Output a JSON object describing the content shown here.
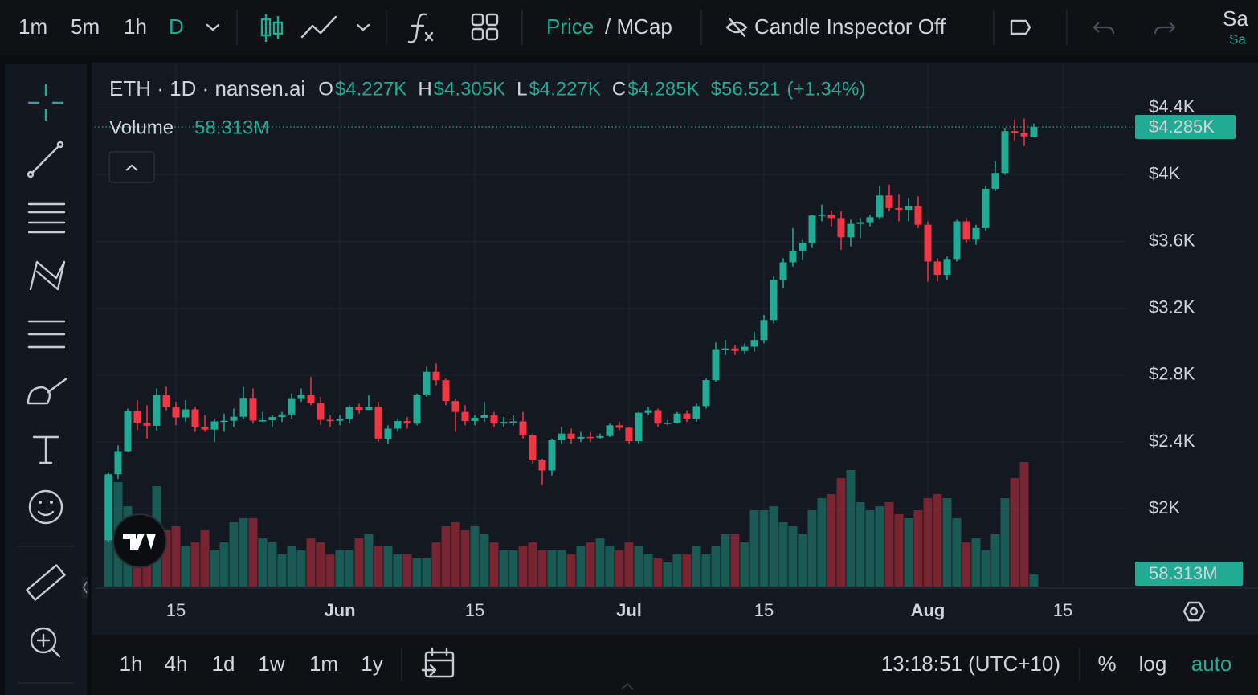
{
  "toolbar": {
    "intervals": [
      "1m",
      "5m",
      "1h",
      "D"
    ],
    "price": "Price",
    "mcap": "/ MCap",
    "candle_inspector": "Candle Inspector Off",
    "save": "Sa",
    "save_status": "Sa"
  },
  "chart_data": {
    "type": "candlestick",
    "title": "ETH · 1D · nansen.ai",
    "ohlc_legend": [
      {
        "key": "O",
        "label": "$4.227K"
      },
      {
        "key": "H",
        "label": "$4.305K"
      },
      {
        "key": "L",
        "label": "$4.227K"
      },
      {
        "key": "C",
        "label": "$4.285K"
      }
    ],
    "change_label": "$56.521",
    "change_percent_label": "(+1.34%)",
    "volume_title": "Volume",
    "volume_legend_label": "58.313M",
    "last_price_label": "$4.285K",
    "last_volume_label": "58.313M",
    "categories": [
      null,
      null,
      null,
      null,
      null,
      null,
      null,
      "15",
      null,
      null,
      null,
      null,
      null,
      null,
      null,
      null,
      null,
      null,
      null,
      null,
      null,
      null,
      null,
      null,
      "Jun",
      null,
      null,
      null,
      null,
      null,
      null,
      null,
      null,
      null,
      null,
      null,
      null,
      null,
      "15",
      null,
      null,
      null,
      null,
      null,
      null,
      null,
      null,
      null,
      null,
      null,
      null,
      null,
      null,
      null,
      "Jul",
      null,
      null,
      null,
      null,
      null,
      null,
      null,
      null,
      null,
      null,
      null,
      null,
      null,
      "15",
      null,
      null,
      null,
      null,
      null,
      null,
      null,
      null,
      null,
      null,
      null,
      null,
      null,
      null,
      null,
      null,
      "Aug",
      null,
      null,
      null,
      null,
      null,
      null,
      null,
      null,
      null,
      null,
      null,
      null,
      null,
      "15"
    ],
    "open": [
      1812,
      2207,
      2345,
      2583,
      2514,
      2497,
      2680,
      2609,
      2547,
      2595,
      2491,
      2474,
      2523,
      2527,
      2551,
      2664,
      2528,
      2530,
      2549,
      2565,
      2662,
      2682,
      2633,
      2532,
      2527,
      2540,
      2609,
      2592,
      2610,
      2420,
      2480,
      2525,
      2510,
      2680,
      2820,
      2770,
      2645,
      2580,
      2525,
      2545,
      2560,
      2510,
      2520,
      2523,
      2440,
      2290,
      2230,
      2410,
      2450,
      2420,
      2430,
      2425,
      2435,
      2500,
      2485,
      2405,
      2575,
      2590,
      2510,
      2515,
      2570,
      2540,
      2615,
      2770,
      2955,
      2960,
      2945,
      2970,
      3010,
      3130,
      3370,
      3475,
      3545,
      3590,
      3755,
      3760,
      3740,
      3625,
      3705,
      3715,
      3745,
      3875,
      3800,
      3790,
      3810,
      3700,
      3480,
      3400,
      3495,
      3720,
      3610,
      3680,
      3915,
      4010,
      4260,
      4250,
      4227,
      null,
      null,
      null
    ],
    "high": [
      2215,
      2380,
      2600,
      2650,
      2620,
      2720,
      2730,
      2640,
      2650,
      2610,
      2560,
      2540,
      2570,
      2600,
      2730,
      2720,
      2580,
      2560,
      2580,
      2690,
      2720,
      2790,
      2670,
      2560,
      2560,
      2620,
      2630,
      2680,
      2640,
      2500,
      2540,
      2550,
      2690,
      2850,
      2870,
      2780,
      2660,
      2620,
      2560,
      2640,
      2580,
      2550,
      2560,
      2580,
      2450,
      2300,
      2420,
      2490,
      2480,
      2460,
      2460,
      2450,
      2510,
      2520,
      2490,
      2580,
      2610,
      2600,
      2530,
      2580,
      2590,
      2630,
      2780,
      2995,
      3010,
      2980,
      2990,
      3060,
      3160,
      3390,
      3500,
      3680,
      3610,
      3760,
      3820,
      3785,
      3780,
      3730,
      3740,
      3760,
      3930,
      3940,
      3880,
      3860,
      3870,
      3720,
      3500,
      3510,
      3730,
      3740,
      3700,
      3930,
      4080,
      4280,
      4330,
      4335,
      4305,
      null,
      null,
      null
    ],
    "low": [
      1800,
      2180,
      2340,
      2470,
      2420,
      2470,
      2590,
      2500,
      2520,
      2460,
      2460,
      2400,
      2460,
      2490,
      2540,
      2510,
      2520,
      2490,
      2520,
      2540,
      2640,
      2620,
      2500,
      2490,
      2500,
      2510,
      2570,
      2590,
      2400,
      2390,
      2460,
      2480,
      2500,
      2670,
      2740,
      2620,
      2460,
      2500,
      2500,
      2520,
      2490,
      2490,
      2500,
      2420,
      2270,
      2140,
      2200,
      2390,
      2390,
      2400,
      2400,
      2420,
      2430,
      2470,
      2390,
      2390,
      2560,
      2490,
      2500,
      2510,
      2520,
      2520,
      2600,
      2760,
      2920,
      2920,
      2930,
      2940,
      2990,
      3110,
      3320,
      3450,
      3490,
      3560,
      3720,
      3690,
      3550,
      3570,
      3620,
      3690,
      3730,
      3780,
      3720,
      3720,
      3680,
      3360,
      3360,
      3370,
      3480,
      3590,
      3580,
      3660,
      3900,
      4000,
      4200,
      4170,
      4227,
      null,
      null,
      null
    ],
    "close": [
      2207,
      2345,
      2583,
      2514,
      2497,
      2680,
      2609,
      2547,
      2595,
      2491,
      2474,
      2523,
      2527,
      2551,
      2664,
      2528,
      2530,
      2549,
      2565,
      2662,
      2682,
      2633,
      2532,
      2527,
      2540,
      2609,
      2592,
      2610,
      2420,
      2480,
      2525,
      2510,
      2680,
      2820,
      2770,
      2645,
      2580,
      2525,
      2545,
      2560,
      2510,
      2520,
      2523,
      2440,
      2290,
      2230,
      2410,
      2450,
      2420,
      2430,
      2425,
      2435,
      2500,
      2485,
      2405,
      2575,
      2590,
      2510,
      2515,
      2570,
      2540,
      2615,
      2770,
      2955,
      2960,
      2945,
      2970,
      3010,
      3130,
      3370,
      3475,
      3545,
      3590,
      3755,
      3760,
      3740,
      3625,
      3705,
      3715,
      3745,
      3875,
      3800,
      3790,
      3810,
      3700,
      3480,
      3400,
      3495,
      3720,
      3610,
      3680,
      3915,
      4010,
      4260,
      4250,
      4228.48,
      4285,
      null,
      null,
      null
    ],
    "volume": [
      538,
      507,
      390,
      312,
      293,
      488,
      273,
      293,
      195,
      215,
      273,
      176,
      215,
      312,
      332,
      332,
      234,
      215,
      156,
      195,
      176,
      234,
      215,
      156,
      176,
      176,
      234,
      254,
      195,
      195,
      156,
      156,
      137,
      137,
      215,
      293,
      312,
      273,
      293,
      254,
      215,
      176,
      176,
      195,
      215,
      176,
      176,
      176,
      156,
      195,
      215,
      234,
      195,
      176,
      215,
      195,
      156,
      137,
      117,
      156,
      156,
      195,
      156,
      195,
      254,
      254,
      215,
      371,
      371,
      390,
      312,
      293,
      254,
      371,
      429,
      449,
      527,
      566,
      410,
      371,
      390,
      410,
      351,
      332,
      371,
      429,
      449,
      429,
      332,
      215,
      234,
      176,
      254,
      429,
      527,
      605,
      58.313,
      null,
      null,
      null
    ],
    "up_color": "#22ab94",
    "down_color": "#f23645",
    "ylim": [
      1535,
      4660
    ],
    "yticks": [
      {
        "value": 2000,
        "label": "$2K"
      },
      {
        "value": 2400,
        "label": "$2.4K"
      },
      {
        "value": 2800,
        "label": "$2.8K"
      },
      {
        "value": 3200,
        "label": "$3.2K"
      },
      {
        "value": 3600,
        "label": "$3.6K"
      },
      {
        "value": 4000,
        "label": "$4K"
      },
      {
        "value": 4400,
        "label": "$4.4K"
      }
    ],
    "grid": true
  },
  "bottom_bar": {
    "ranges": [
      "1h",
      "4h",
      "1d",
      "1w",
      "1m",
      "1y"
    ],
    "clock": "13:18:51 (UTC+10)",
    "percent": "%",
    "log": "log",
    "auto": "auto"
  }
}
